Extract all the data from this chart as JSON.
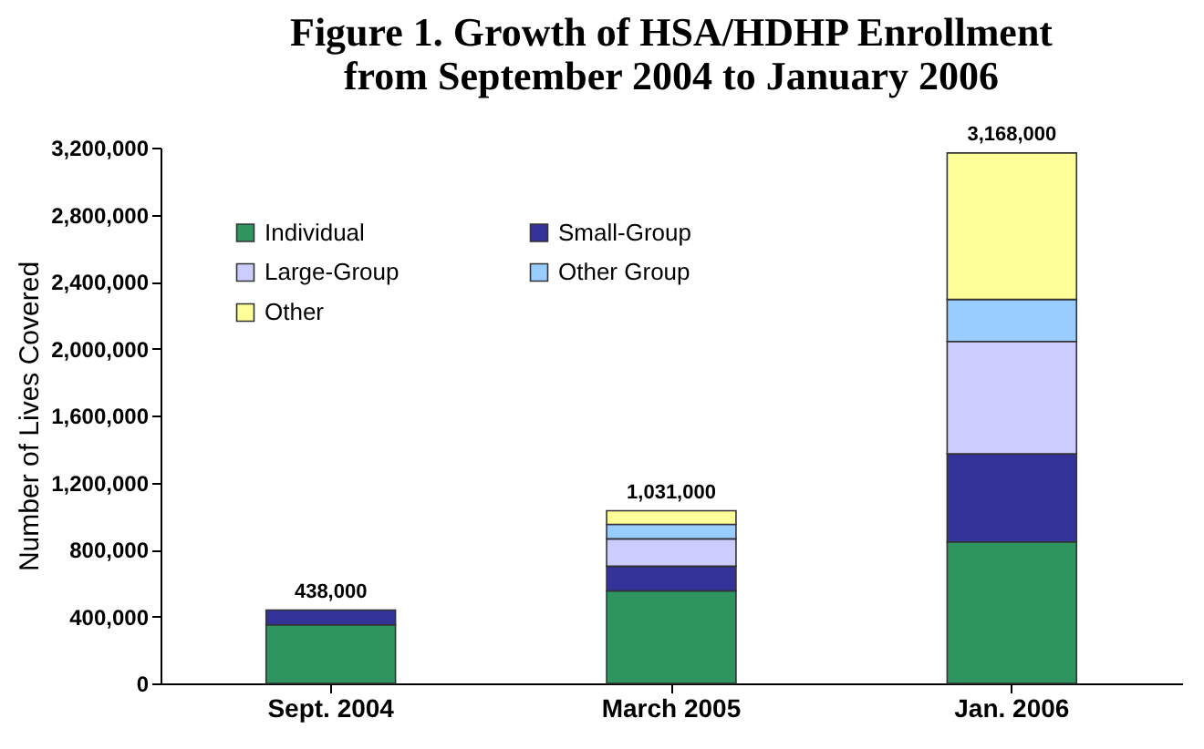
{
  "chart_data": {
    "type": "bar",
    "title": "Figure 1. Growth of HSA/HDHP Enrollment\nfrom September 2004 to January 2006",
    "ylabel": "Number of Lives Covered",
    "categories": [
      "Sept. 2004",
      "March 2005",
      "Jan. 2006"
    ],
    "series": [
      {
        "name": "Individual",
        "color": "#2e9560",
        "values": [
          350000,
          552000,
          845000
        ]
      },
      {
        "name": "Small-Group",
        "color": "#333399",
        "values": [
          88000,
          148000,
          526000
        ]
      },
      {
        "name": "Large-Group",
        "color": "#ccccff",
        "values": [
          null,
          163000,
          671000
        ]
      },
      {
        "name": "Other Group",
        "color": "#99ccff",
        "values": [
          null,
          87000,
          251000
        ]
      },
      {
        "name": "Other",
        "color": "#ffff99",
        "values": [
          null,
          81000,
          875000
        ]
      }
    ],
    "stacked": true,
    "totals": [
      "438,000",
      "1,031,000",
      "3,168,000"
    ],
    "ylim": [
      0,
      3200000
    ],
    "yticks": [
      0,
      {
        "value": 400000,
        "label": "400,000"
      },
      {
        "value": 800000,
        "label": "800,000"
      },
      {
        "value": 1200000,
        "label": "1,200,000"
      },
      {
        "value": 1600000,
        "label": "1,600,000"
      },
      {
        "value": 2000000,
        "label": "2,000,000"
      },
      {
        "value": 2400000,
        "label": "2,400,000"
      },
      {
        "value": 2800000,
        "label": "2,800,000"
      },
      {
        "value": 3200000,
        "label": "3,200,000"
      }
    ],
    "grid": false,
    "legend": "top left"
  }
}
